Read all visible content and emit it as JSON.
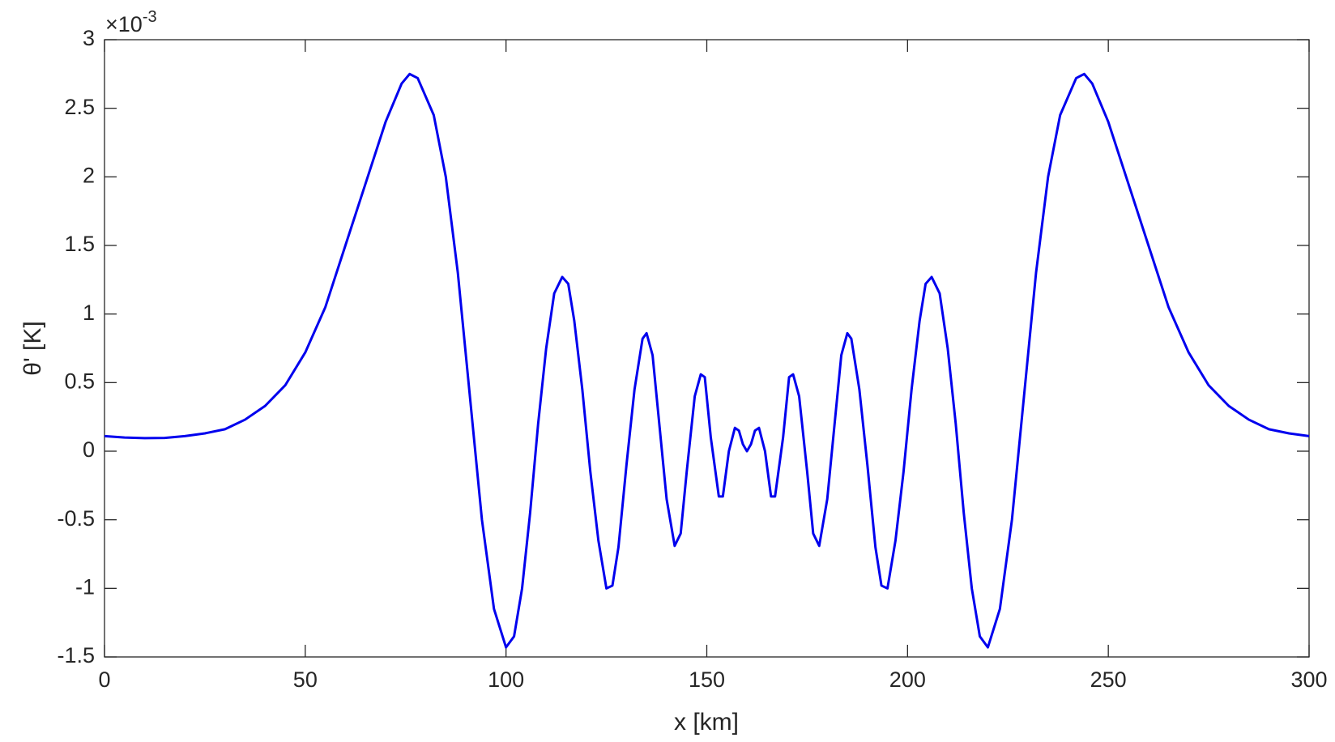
{
  "chart_data": {
    "type": "line",
    "xlabel": "x [km]",
    "ylabel": "θ' [K]",
    "exponent_base": "×10",
    "exponent_power": "-3",
    "xlim": [
      0,
      300
    ],
    "xticks": [
      0,
      50,
      100,
      150,
      200,
      250,
      300
    ],
    "ylim": [
      -1.5,
      3
    ],
    "yticks": [
      -1.5,
      -1,
      -0.5,
      0,
      0.5,
      1,
      1.5,
      2,
      2.5,
      3
    ],
    "grid": false,
    "series": [
      {
        "color": "#0000ee",
        "x": [
          0,
          5,
          10,
          15,
          20,
          25,
          30,
          35,
          40,
          45,
          50,
          55,
          60,
          65,
          70,
          74,
          76,
          78,
          82,
          85,
          88,
          91,
          94,
          97,
          100,
          102,
          104,
          106,
          108,
          110,
          112,
          114,
          115.5,
          117,
          119,
          121,
          123,
          125,
          126.5,
          128,
          130,
          132,
          134,
          135,
          136.5,
          138,
          140,
          142,
          143.5,
          145,
          147,
          148.5,
          149.5,
          151,
          153,
          154,
          155.5,
          157,
          158,
          159,
          160,
          161,
          162,
          163,
          164.5,
          166,
          167,
          169,
          170.5,
          171.5,
          173,
          175,
          176.5,
          178,
          180,
          182,
          183.5,
          185,
          186,
          188,
          190,
          192,
          193.5,
          195,
          197,
          199,
          201,
          203,
          204.5,
          206,
          208,
          210,
          212,
          214,
          216,
          218,
          220,
          223,
          226,
          229,
          232,
          235,
          238,
          242,
          244,
          246,
          250,
          255,
          260,
          265,
          270,
          275,
          280,
          285,
          290,
          295,
          300
        ],
        "values": [
          0.11,
          0.1,
          0.095,
          0.097,
          0.11,
          0.13,
          0.16,
          0.23,
          0.33,
          0.48,
          0.72,
          1.05,
          1.5,
          1.95,
          2.4,
          2.68,
          2.75,
          2.72,
          2.45,
          2.0,
          1.3,
          0.4,
          -0.5,
          -1.15,
          -1.43,
          -1.35,
          -1.0,
          -0.45,
          0.2,
          0.75,
          1.15,
          1.27,
          1.22,
          0.95,
          0.45,
          -0.15,
          -0.65,
          -1.0,
          -0.98,
          -0.7,
          -0.1,
          0.45,
          0.82,
          0.86,
          0.7,
          0.25,
          -0.35,
          -0.69,
          -0.6,
          -0.15,
          0.4,
          0.56,
          0.54,
          0.1,
          -0.33,
          -0.33,
          0.0,
          0.17,
          0.15,
          0.05,
          0.0,
          0.05,
          0.15,
          0.17,
          0.0,
          -0.33,
          -0.33,
          0.1,
          0.54,
          0.56,
          0.4,
          -0.15,
          -0.6,
          -0.69,
          -0.35,
          0.25,
          0.7,
          0.86,
          0.82,
          0.45,
          -0.1,
          -0.7,
          -0.98,
          -1.0,
          -0.65,
          -0.15,
          0.45,
          0.95,
          1.22,
          1.27,
          1.15,
          0.75,
          0.2,
          -0.45,
          -1.0,
          -1.35,
          -1.43,
          -1.15,
          -0.5,
          0.4,
          1.3,
          2.0,
          2.45,
          2.72,
          2.75,
          2.68,
          2.4,
          1.95,
          1.5,
          1.05,
          0.72,
          0.48,
          0.33,
          0.23,
          0.16,
          0.13,
          0.11
        ]
      }
    ]
  }
}
